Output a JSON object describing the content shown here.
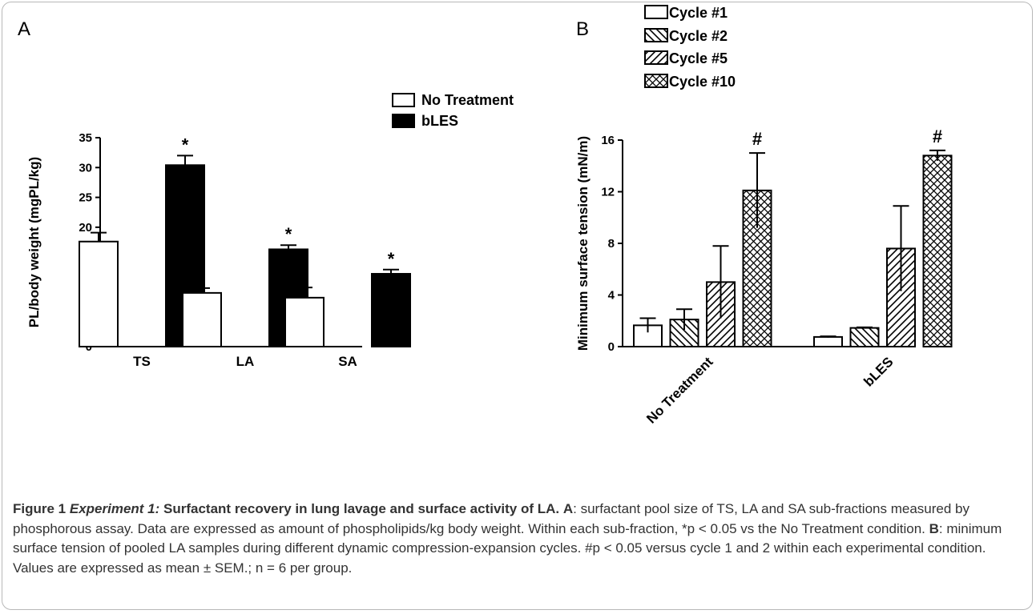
{
  "figure": {
    "caption": {
      "figure_number": "Figure 1",
      "experiment": "Experiment 1:",
      "title": " Surfactant recovery in lung lavage and surface activity of LA.",
      "label_a": "A",
      "text_a": ": surfactant pool size of TS, LA and SA sub-fractions measured by phosphorous assay. Data are expressed as amount of phospholipids/kg body weight. Within each sub-fraction, *p < 0.05 vs the No Treatment condition. ",
      "label_b": "B",
      "text_b": ": minimum surface tension of pooled LA samples during different dynamic compression-expansion cycles. #p < 0.05 versus cycle 1 and 2 within each experimental condition. Values are expressed as mean ± SEM.; n = 6 per group."
    }
  },
  "chart_data": [
    {
      "panel_label": "A",
      "type": "bar",
      "ylabel": "PL/body weight (mgPL/kg)",
      "xlabel": "",
      "ylim": [
        0,
        35
      ],
      "yticks": [
        0,
        5,
        10,
        15,
        20,
        25,
        30,
        35
      ],
      "categories": [
        "TS",
        "LA",
        "SA"
      ],
      "series": [
        {
          "name": "No Treatment",
          "fill": "#ffffff",
          "values": [
            17.6,
            9.0,
            8.2
          ],
          "errors": [
            1.5,
            0.8,
            1.7
          ]
        },
        {
          "name": "bLES",
          "fill": "#000000",
          "values": [
            30.4,
            16.3,
            12.2
          ],
          "errors": [
            1.6,
            0.7,
            0.7
          ]
        }
      ],
      "annotations": [
        {
          "category": "TS",
          "series": "bLES",
          "text": "*"
        },
        {
          "category": "LA",
          "series": "bLES",
          "text": "*"
        },
        {
          "category": "SA",
          "series": "bLES",
          "text": "*"
        }
      ],
      "legend_position": "top-right",
      "grid": false
    },
    {
      "panel_label": "B",
      "type": "bar",
      "ylabel": "Minimum surface tension  (mN/m)",
      "xlabel": "",
      "ylim": [
        0,
        16
      ],
      "yticks": [
        0,
        4,
        8,
        12,
        16
      ],
      "categories": [
        "No Treatment",
        "bLES"
      ],
      "series": [
        {
          "name": "Cycle #1",
          "pattern": "none",
          "values": [
            1.65,
            0.75
          ],
          "errors": [
            0.55,
            0.05
          ]
        },
        {
          "name": "Cycle #2",
          "pattern": "backslash",
          "values": [
            2.1,
            1.45
          ],
          "errors": [
            0.8,
            0.05
          ]
        },
        {
          "name": "Cycle #5",
          "pattern": "slash",
          "values": [
            5.0,
            7.6
          ],
          "errors": [
            2.8,
            3.3
          ]
        },
        {
          "name": "Cycle #10",
          "pattern": "crosshatch",
          "values": [
            12.1,
            14.8
          ],
          "errors": [
            2.9,
            0.4
          ]
        }
      ],
      "annotations": [
        {
          "category": "No Treatment",
          "series": "Cycle #10",
          "text": "#"
        },
        {
          "category": "bLES",
          "series": "Cycle #10",
          "text": "#"
        }
      ],
      "legend_position": "top-left",
      "grid": false
    }
  ]
}
